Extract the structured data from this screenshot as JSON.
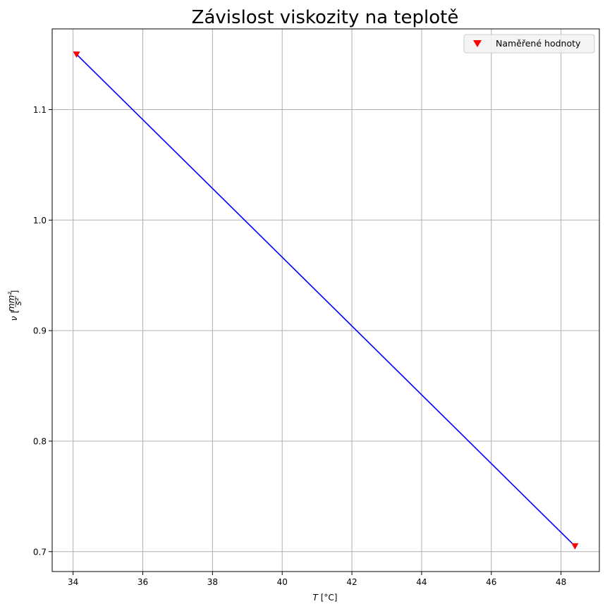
{
  "chart_data": {
    "type": "line",
    "title": "Závislost viskozity na teplotě",
    "xlabel_var": "T",
    "xlabel_unit": "[°C]",
    "ylabel_var": "ν",
    "ylabel_unit_num": "mm²",
    "ylabel_unit_den": "s²",
    "xlim": [
      33.4,
      49.1
    ],
    "ylim": [
      0.682,
      1.173
    ],
    "xticks": [
      34,
      36,
      38,
      40,
      42,
      44,
      46,
      48
    ],
    "yticks": [
      0.7,
      0.8,
      0.9,
      1.0,
      1.1
    ],
    "xtick_labels": [
      "34",
      "36",
      "38",
      "40",
      "42",
      "44",
      "46",
      "48"
    ],
    "ytick_labels": [
      "0.7",
      "0.8",
      "0.9",
      "1.0",
      "1.1"
    ],
    "grid": true,
    "legend_position": "top-right",
    "series": [
      {
        "name": "Naměřené hodnoty",
        "kind": "scatter",
        "marker": "triangle-down",
        "color": "#ff0000",
        "x": [
          34.1,
          48.4
        ],
        "y": [
          1.15,
          0.705
        ]
      },
      {
        "kind": "line",
        "color": "#0000ff",
        "x": [
          34.1,
          48.4
        ],
        "y": [
          1.15,
          0.705
        ]
      }
    ]
  }
}
